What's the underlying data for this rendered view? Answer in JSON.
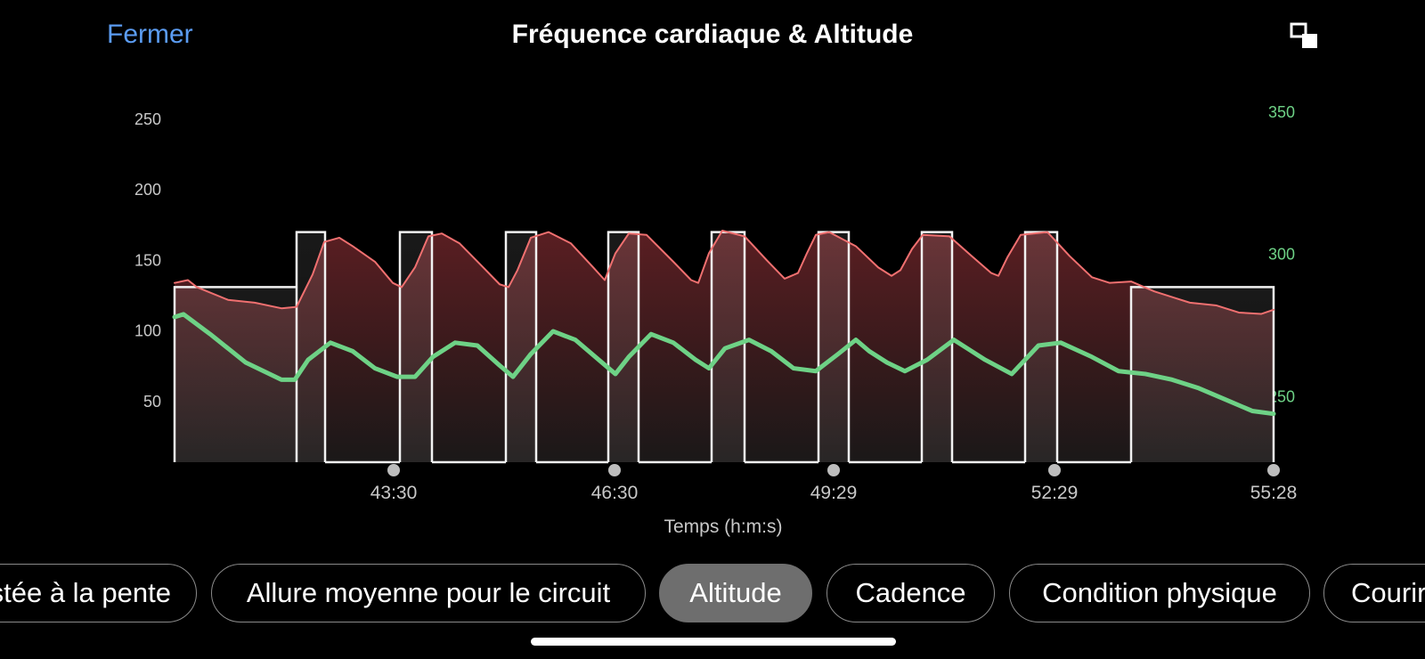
{
  "header": {
    "close_label": "Fermer",
    "title": "Fréquence cardiaque & Altitude",
    "expand_icon": "expand-icon"
  },
  "chart_data": {
    "type": "line",
    "xlabel": "Temps (h:m:s)",
    "x_ticks": [
      "43:30",
      "46:30",
      "49:29",
      "52:29",
      "55:28"
    ],
    "y_left_ticks": [
      250,
      200,
      150,
      100,
      50
    ],
    "y_right_ticks": [
      350,
      300,
      250
    ],
    "y_left_range": [
      7,
      265
    ],
    "y_right_range": [
      227,
      355
    ],
    "x_range": [
      0,
      1234
    ],
    "interval_levels": {
      "high": 170,
      "low": 131
    },
    "intervals": [
      {
        "start": 0,
        "end": 137,
        "level": "low"
      },
      {
        "start": 137,
        "end": 169,
        "level": "high"
      },
      {
        "start": 169,
        "end": 253,
        "level": "none"
      },
      {
        "start": 253,
        "end": 289,
        "level": "high"
      },
      {
        "start": 289,
        "end": 372,
        "level": "none"
      },
      {
        "start": 372,
        "end": 406,
        "level": "high"
      },
      {
        "start": 406,
        "end": 487,
        "level": "none"
      },
      {
        "start": 487,
        "end": 521,
        "level": "high"
      },
      {
        "start": 521,
        "end": 603,
        "level": "none"
      },
      {
        "start": 603,
        "end": 640,
        "level": "high"
      },
      {
        "start": 640,
        "end": 723,
        "level": "none"
      },
      {
        "start": 723,
        "end": 757,
        "level": "high"
      },
      {
        "start": 757,
        "end": 839,
        "level": "none"
      },
      {
        "start": 839,
        "end": 873,
        "level": "high"
      },
      {
        "start": 873,
        "end": 955,
        "level": "none"
      },
      {
        "start": 955,
        "end": 991,
        "level": "high"
      },
      {
        "start": 991,
        "end": 1074,
        "level": "none"
      },
      {
        "start": 1074,
        "end": 1234,
        "level": "low"
      }
    ],
    "series": [
      {
        "color": "#f07070",
        "axis": "left",
        "x": [
          0,
          15,
          25,
          60,
          90,
          120,
          137,
          155,
          168,
          185,
          200,
          225,
          245,
          255,
          270,
          285,
          300,
          320,
          345,
          365,
          375,
          385,
          400,
          420,
          445,
          470,
          483,
          495,
          510,
          530,
          560,
          580,
          588,
          600,
          615,
          640,
          665,
          685,
          700,
          710,
          720,
          735,
          765,
          790,
          805,
          815,
          828,
          840,
          870,
          895,
          917,
          925,
          935,
          950,
          980,
          1005,
          1030,
          1050,
          1074,
          1100,
          1120,
          1140,
          1170,
          1195,
          1220,
          1234
        ],
        "y": [
          134,
          136,
          131,
          122,
          120,
          116,
          117,
          140,
          163,
          166,
          160,
          149,
          134,
          131,
          145,
          167,
          169,
          162,
          146,
          133,
          131,
          143,
          166,
          170,
          162,
          145,
          136,
          155,
          169,
          168,
          149,
          136,
          134,
          155,
          171,
          167,
          150,
          137,
          141,
          155,
          168,
          170,
          160,
          145,
          139,
          143,
          158,
          168,
          167,
          153,
          141,
          139,
          152,
          168,
          170,
          153,
          138,
          134,
          135,
          128,
          124,
          120,
          118,
          113,
          112,
          115
        ]
      },
      {
        "color": "#6ed286",
        "axis": "right",
        "x": [
          0,
          10,
          40,
          80,
          120,
          135,
          150,
          175,
          200,
          225,
          250,
          270,
          290,
          315,
          340,
          365,
          380,
          400,
          425,
          450,
          480,
          495,
          510,
          535,
          560,
          585,
          600,
          618,
          645,
          670,
          695,
          720,
          745,
          765,
          780,
          800,
          820,
          845,
          875,
          890,
          910,
          940,
          970,
          995,
          1030,
          1060,
          1090,
          1120,
          1150,
          1180,
          1210,
          1234
        ],
        "y": [
          278,
          279,
          272,
          262,
          256,
          256,
          263,
          269,
          266,
          260,
          257,
          257,
          264,
          269,
          268,
          261,
          257,
          265,
          273,
          270,
          262,
          258,
          264,
          272,
          269,
          263,
          260,
          267,
          270,
          266,
          260,
          259,
          265,
          270,
          266,
          262,
          259,
          263,
          270,
          267,
          263,
          258,
          268,
          269,
          264,
          259,
          258,
          256,
          253,
          249,
          245,
          244
        ]
      }
    ],
    "markers_x": [
      246,
      494,
      740,
      988,
      1234
    ]
  },
  "chips": [
    {
      "label": "Vitesse ajustée à la pente",
      "active": false
    },
    {
      "label": "Allure moyenne pour le circuit",
      "active": false
    },
    {
      "label": "Altitude",
      "active": true
    },
    {
      "label": "Cadence",
      "active": false
    },
    {
      "label": "Condition physique",
      "active": false
    },
    {
      "label": "Courir",
      "active": false
    }
  ]
}
